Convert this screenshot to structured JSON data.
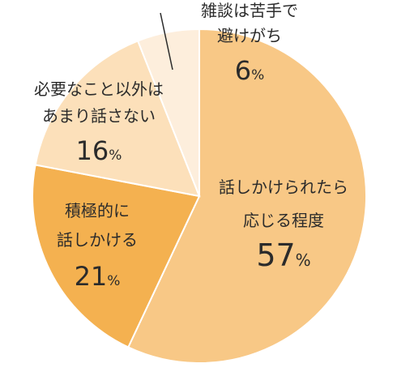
{
  "chart_data": {
    "type": "pie",
    "title": "",
    "slices": [
      {
        "label_lines": [
          "話しかけられたら",
          "応じる程度"
        ],
        "value": 57,
        "pct_text": "57",
        "color": "#F8C886"
      },
      {
        "label_lines": [
          "積極的に",
          "話しかける"
        ],
        "value": 21,
        "pct_text": "21",
        "color": "#F4B150"
      },
      {
        "label_lines": [
          "必要なこと以外は",
          "あまり話さない"
        ],
        "value": 16,
        "pct_text": "16",
        "color": "#FCE0BA"
      },
      {
        "label_lines": [
          "雑談は苦手で",
          "避けがち"
        ],
        "value": 6,
        "pct_text": "6",
        "color": "#FDEEDC"
      }
    ],
    "percent_sign": "%"
  }
}
